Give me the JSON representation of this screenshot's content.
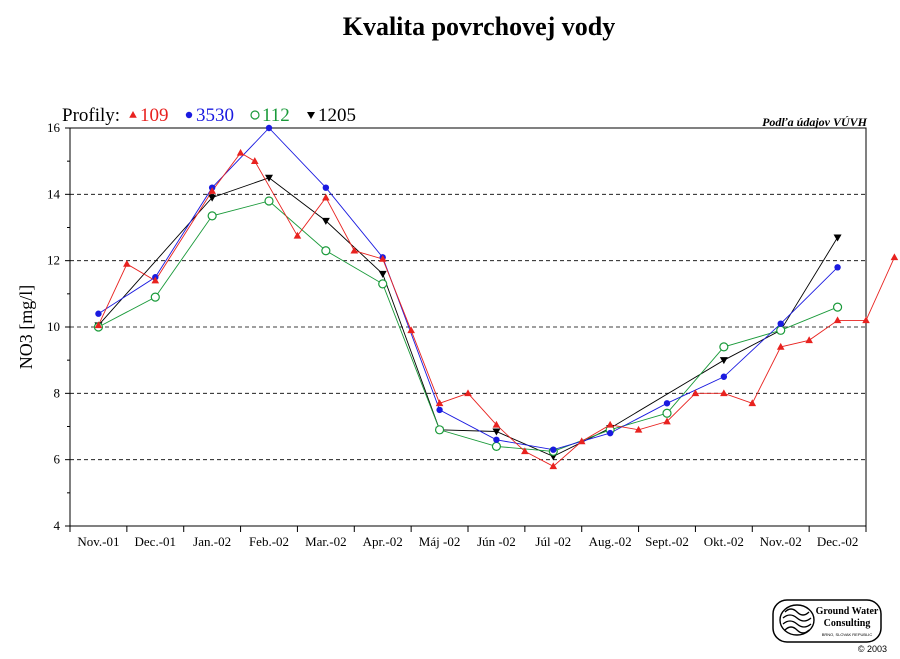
{
  "chart_data": {
    "type": "line",
    "title": "Kvalita povrchovej vody",
    "ylabel": "NO3 [mg/l]",
    "xlabel": "",
    "ylim": [
      4,
      16
    ],
    "yticks": [
      4,
      6,
      8,
      10,
      12,
      14,
      16
    ],
    "grid": "horizontal-dashed",
    "categories": [
      "Nov.-01",
      "Dec.-01",
      "Jan.-02",
      "Feb.-02",
      "Mar.-02",
      "Apr.-02",
      "Máj -02",
      "Jún -02",
      "Júl -02",
      "Aug.-02",
      "Sept.-02",
      "Okt.-02",
      "Nov.-02",
      "Dec.-02"
    ],
    "legend_label": "Profily:",
    "source_note": "Podľa údajov VÚVH",
    "series": [
      {
        "name": "109",
        "color": "#e8221f",
        "marker": "triangle-up",
        "filled": true,
        "points": [
          [
            0,
            10.05
          ],
          [
            0.5,
            11.9
          ],
          [
            1,
            11.4
          ],
          [
            2,
            14.1
          ],
          [
            2.5,
            15.25
          ],
          [
            2.75,
            15.0
          ],
          [
            3.5,
            12.75
          ],
          [
            4,
            13.9
          ],
          [
            4.5,
            12.3
          ],
          [
            5,
            12.05
          ],
          [
            5.5,
            9.9
          ],
          [
            6,
            7.7
          ],
          [
            6.5,
            8.0
          ],
          [
            7,
            7.05
          ],
          [
            7.5,
            6.25
          ],
          [
            8,
            5.8
          ],
          [
            8.5,
            6.55
          ],
          [
            9,
            7.05
          ],
          [
            9.5,
            6.9
          ],
          [
            10,
            7.15
          ],
          [
            10.5,
            8.0
          ],
          [
            11,
            8.0
          ],
          [
            11.5,
            7.7
          ],
          [
            12,
            9.4
          ],
          [
            12.5,
            9.6
          ],
          [
            13,
            10.2
          ],
          [
            13.5,
            10.2
          ],
          [
            14,
            12.1
          ]
        ]
      },
      {
        "name": "3530",
        "color": "#1a1ae0",
        "marker": "circle",
        "filled": true,
        "points": [
          [
            0,
            10.4
          ],
          [
            1,
            11.5
          ],
          [
            2,
            14.2
          ],
          [
            3,
            16.0
          ],
          [
            4,
            14.2
          ],
          [
            5,
            12.1
          ],
          [
            6,
            7.5
          ],
          [
            7,
            6.6
          ],
          [
            8,
            6.3
          ],
          [
            9,
            6.8
          ],
          [
            10,
            7.7
          ],
          [
            11,
            8.5
          ],
          [
            12,
            10.1
          ],
          [
            13,
            11.8
          ]
        ]
      },
      {
        "name": "112",
        "color": "#1a9a3a",
        "marker": "circle",
        "filled": false,
        "points": [
          [
            0,
            10.0
          ],
          [
            1,
            10.9
          ],
          [
            2,
            13.35
          ],
          [
            3,
            13.8
          ],
          [
            4,
            12.3
          ],
          [
            5,
            11.3
          ],
          [
            6,
            6.9
          ],
          [
            7,
            6.4
          ],
          [
            8,
            6.25
          ],
          [
            9,
            6.9
          ],
          [
            10,
            7.4
          ],
          [
            11,
            9.4
          ],
          [
            12,
            9.9
          ],
          [
            13,
            10.6
          ]
        ]
      },
      {
        "name": "1205",
        "color": "#000000",
        "marker": "triangle-down",
        "filled": true,
        "points": [
          [
            0,
            10.05
          ],
          [
            2,
            13.9
          ],
          [
            3,
            14.5
          ],
          [
            4,
            13.2
          ],
          [
            5,
            11.6
          ],
          [
            6,
            6.9
          ],
          [
            7,
            6.85
          ],
          [
            8,
            6.1
          ],
          [
            9,
            6.95
          ],
          [
            11,
            9.0
          ],
          [
            12,
            9.9
          ],
          [
            13,
            12.7
          ]
        ]
      }
    ]
  },
  "logo": {
    "line1": "Ground Water",
    "line2": "Consulting",
    "line3": "BRNO, SLOVAK REPUBLIC",
    "copyright": "© 2003"
  }
}
